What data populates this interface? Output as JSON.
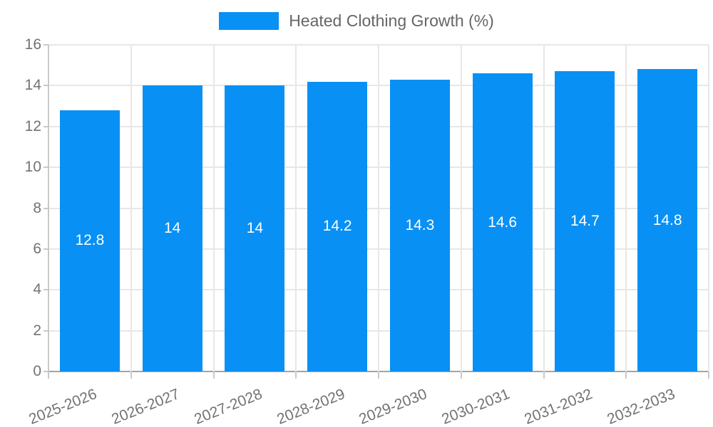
{
  "chart_data": {
    "type": "bar",
    "title": "",
    "legend_label": "Heated Clothing Growth (%)",
    "legend_position": "top",
    "categories": [
      "2025-2026",
      "2026-2027",
      "2027-2028",
      "2028-2029",
      "2029-2030",
      "2030-2031",
      "2031-2032",
      "2032-2033"
    ],
    "values": [
      12.8,
      14,
      14,
      14.2,
      14.3,
      14.6,
      14.7,
      14.8
    ],
    "bar_labels": [
      "12.8",
      "14",
      "14",
      "14.2",
      "14.3",
      "14.6",
      "14.7",
      "14.8"
    ],
    "y_tick_labels": [
      "0",
      "2",
      "4",
      "6",
      "8",
      "10",
      "12",
      "14",
      "16"
    ],
    "ylim": [
      0,
      16
    ],
    "y_step": 2,
    "xlabel": "",
    "ylabel": "",
    "grid": true,
    "colors": {
      "bar": "#0890f5",
      "bar_value_text": "#ffffff",
      "axis_text": "#737373",
      "legend_text": "#666666",
      "gridline": "#e7e7e7",
      "x_axis_line": "#a3a3a3",
      "y_axis_line": "#c9c9c9",
      "background": "#ffffff"
    }
  }
}
